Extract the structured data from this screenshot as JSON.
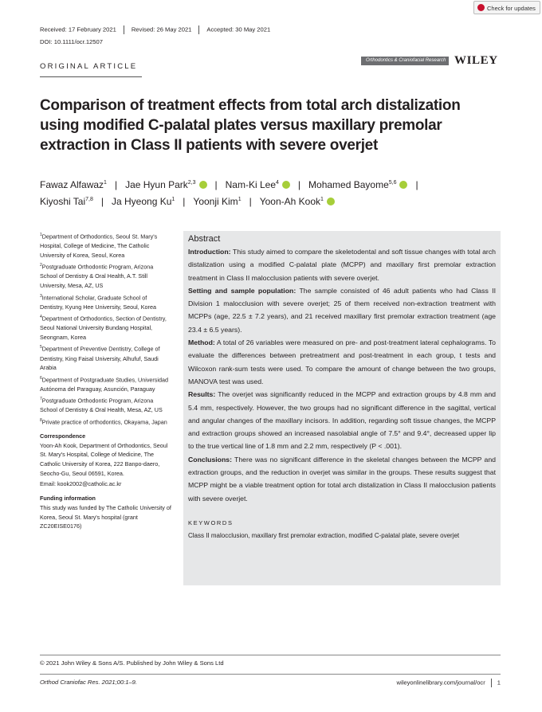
{
  "updates": "Check for updates",
  "history": {
    "received": "Received: 17 February 2021",
    "revised": "Revised: 26 May 2021",
    "accepted": "Accepted: 30 May 2021"
  },
  "doi": "DOI: 10.1111/ocr.12507",
  "section": "ORIGINAL ARTICLE",
  "journal_logo": "Orthodontics & Craniofacial Research",
  "publisher": "WILEY",
  "title_lines": [
    "Comparison of treatment effects from total arch distalization",
    "using modified C-palatal plates versus maxillary premolar",
    "extraction in Class II patients with severe overjet"
  ],
  "authors": [
    {
      "name": "Fawaz Alfawaz",
      "sup": "1"
    },
    {
      "name": "Jae Hyun Park",
      "sup": "2,3"
    },
    {
      "name": "Nam-Ki Lee",
      "sup": "4"
    },
    {
      "name": "Mohamed Bayome",
      "sup": "5,6"
    },
    {
      "name": "Kiyoshi Tai",
      "sup": "7,8"
    },
    {
      "name": "Ja Hyeong Ku",
      "sup": "1"
    },
    {
      "name": "Yoonji Kim",
      "sup": "1"
    },
    {
      "name": "Yoon-Ah Kook",
      "sup": "1"
    }
  ],
  "affiliations": [
    {
      "n": "1",
      "text": "Department of Orthodontics, Seoul St. Mary's Hospital, College of Medicine, The Catholic University of Korea, Seoul, Korea"
    },
    {
      "n": "2",
      "text": "Postgraduate Orthodontic Program, Arizona School of Dentistry & Oral Health, A.T. Still University, Mesa, AZ, US"
    },
    {
      "n": "3",
      "text": "International Scholar, Graduate School of Dentistry, Kyung Hee University, Seoul, Korea"
    },
    {
      "n": "4",
      "text": "Department of Orthodontics, Section of Dentistry, Seoul National University Bundang Hospital, Seongnam, Korea"
    },
    {
      "n": "5",
      "text": "Department of Preventive Dentistry, College of Dentistry, King Faisal University, Alhufuf, Saudi Arabia"
    },
    {
      "n": "6",
      "text": "Department of Postgraduate Studies, Universidad Autónoma del Paraguay, Asunción, Paraguay"
    },
    {
      "n": "7",
      "text": "Postgraduate Orthodontic Program, Arizona School of Dentistry & Oral Health, Mesa, AZ, US"
    },
    {
      "n": "8",
      "text": "Private practice of orthodontics, Okayama, Japan"
    }
  ],
  "correspondence": {
    "heading": "Correspondence",
    "text": "Yoon-Ah Kook, Department of Orthodontics, Seoul St. Mary's Hospital, College of Medicine, The Catholic University of Korea, 222 Banpo-daero, Seocho-Gu, Seoul 06591, Korea.",
    "email": "Email: kook2002@catholic.ac.kr"
  },
  "funding": {
    "heading": "Funding information",
    "text": "This study was funded by The Catholic University of Korea, Seoul St. Mary's hospital (grant ZC20EISE0176)"
  },
  "abstract": {
    "heading": "Abstract",
    "sections": [
      {
        "heading": "Introduction:",
        "text": "This study aimed to compare the skeletodental and soft tissue changes with total arch distalization using a modified C-palatal plate (MCPP) and maxillary first premolar extraction treatment in Class II malocclusion patients with severe overjet."
      },
      {
        "heading": "Setting and sample population:",
        "text": "The sample consisted of 46 adult patients who had Class II Division 1 malocclusion with severe overjet; 25 of them received non-extraction treatment with MCPPs (age, 22.5 ± 7.2 years), and 21 received maxillary first premolar extraction treatment (age 23.4 ± 6.5 years)."
      },
      {
        "heading": "Method:",
        "text": "A total of 26 variables were measured on pre- and post-treatment lateral cephalograms. To evaluate the differences between pretreatment and post-treatment in each group, t tests and Wilcoxon rank-sum tests were used. To compare the amount of change between the two groups, MANOVA test was used."
      },
      {
        "heading": "Results:",
        "text": "The overjet was significantly reduced in the MCPP and extraction groups by 4.8 mm and 5.4 mm, respectively. However, the two groups had no significant difference in the sagittal, vertical and angular changes of the maxillary incisors. In addition, regarding soft tissue changes, the MCPP and extraction groups showed an increased nasolabial angle of 7.5° and 9.4°, decreased upper lip to the true vertical line of 1.8 mm and 2.2 mm, respectively (P < .001)."
      },
      {
        "heading": "Conclusions:",
        "text": "There was no significant difference in the skeletal changes between the MCPP and extraction groups, and the reduction in overjet was similar in the groups. These results suggest that MCPP might be a viable treatment option for total arch distalization in Class II malocclusion patients with severe overjet."
      }
    ]
  },
  "keywords": {
    "heading": "KEYWORDS",
    "text": "Class II malocclusion, maxillary first premolar extraction, modified C-palatal plate, severe overjet"
  },
  "footer": {
    "copyright": "© 2021 John Wiley & Sons A/S. Published by John Wiley & Sons Ltd",
    "citation": "Orthod Craniofac Res. 2021;00:1–9.",
    "site": "wileyonlinelibrary.com/journal/ocr",
    "page": "1"
  }
}
